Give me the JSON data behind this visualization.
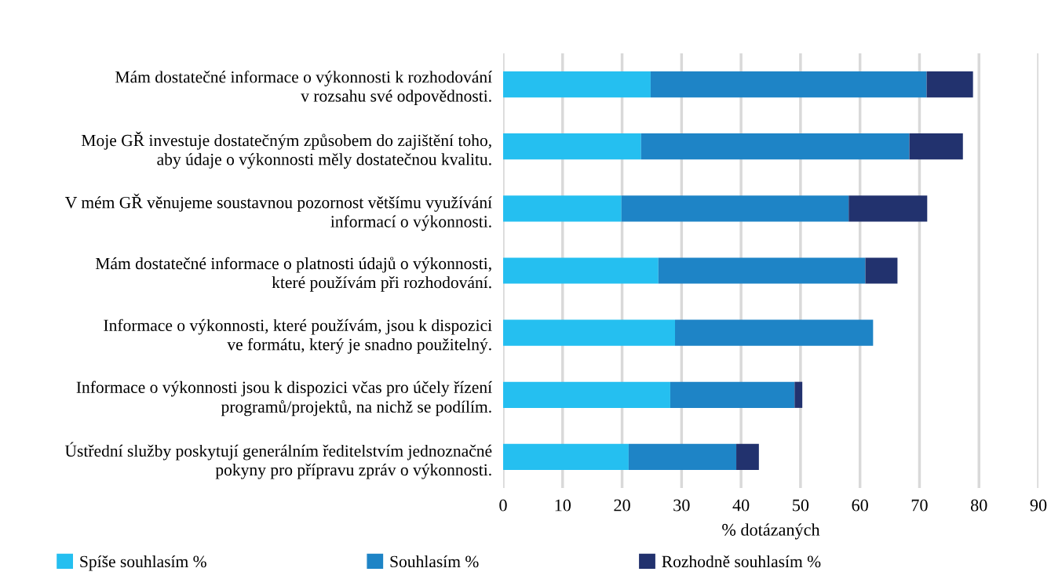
{
  "chart_data": {
    "type": "bar",
    "orientation": "horizontal",
    "stacked": true,
    "xlabel": "% dotázaných",
    "categories": [
      "Mám dostatečné informace o výkonnosti k rozhodování\nv rozsahu své odpovědnosti.",
      "Moje GŘ investuje dostatečným způsobem do zajištění toho,\naby údaje o výkonnosti měly dostatečnou kvalitu.",
      "V mém GŘ věnujeme soustavnou pozornost většímu využívání\ninformací o výkonnosti.",
      "Mám dostatečné informace o platnosti údajů o výkonnosti,\nkteré používám při rozhodování.",
      "Informace o výkonnosti, které používám, jsou k dispozici\nve formátu, který je snadno použitelný.",
      "Informace o výkonnosti jsou k dispozici včas pro účely řízení\nprogramů/projektů, na nichž se podílím.",
      "Ústřední služby poskytují generálním ředitelstvím jednoznačné\npokyny pro přípravu zpráv o výkonnosti."
    ],
    "series": [
      {
        "name": "Spíše souhlasím %",
        "color": "#25bff0",
        "values": [
          24.8,
          23.2,
          19.9,
          26.1,
          28.9,
          28.1,
          21.1
        ]
      },
      {
        "name": "Souhlasím %",
        "color": "#1e84c6",
        "values": [
          46.4,
          45.1,
          38.2,
          34.8,
          33.3,
          20.9,
          18.1
        ]
      },
      {
        "name": "Rozhodně souhlasím %",
        "color": "#22326e",
        "values": [
          7.8,
          9.0,
          13.2,
          5.4,
          0,
          1.3,
          3.8
        ]
      }
    ],
    "xlim": [
      0,
      90
    ],
    "xticks": [
      0,
      10,
      20,
      30,
      40,
      50,
      60,
      70,
      80,
      90
    ],
    "grid": "x",
    "legend": "bottom"
  }
}
